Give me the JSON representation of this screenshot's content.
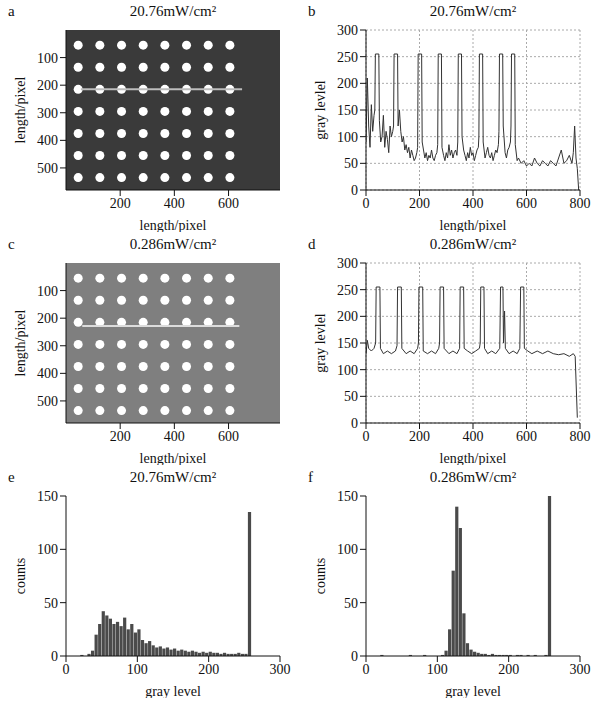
{
  "chart_data": [
    {
      "type": "scatter",
      "panel_label": "a",
      "title": "20.76mW/cm²",
      "x_label": "length/pixel",
      "y_label": "length/pixel",
      "xlim": [
        0,
        790
      ],
      "ylim": [
        0,
        580
      ],
      "xticks": [
        200,
        400,
        600
      ],
      "yticks": [
        100,
        200,
        300,
        400,
        500
      ],
      "grid": false,
      "series": [
        {
          "type": "scatter",
          "marker": "circle",
          "color": "#ffffff",
          "x": [
            45,
            125,
            205,
            285,
            365,
            445,
            525,
            605,
            45,
            125,
            205,
            285,
            365,
            445,
            525,
            605,
            45,
            125,
            205,
            285,
            365,
            445,
            525,
            605,
            45,
            125,
            205,
            285,
            365,
            445,
            525,
            605,
            45,
            125,
            205,
            285,
            365,
            445,
            525,
            605,
            45,
            125,
            205,
            285,
            365,
            445,
            525,
            605,
            45,
            125,
            205,
            285,
            365,
            445,
            525,
            605
          ],
          "y": [
            55,
            55,
            55,
            55,
            55,
            55,
            55,
            55,
            135,
            135,
            135,
            135,
            135,
            135,
            135,
            135,
            215,
            215,
            215,
            215,
            215,
            215,
            215,
            215,
            295,
            295,
            295,
            295,
            295,
            295,
            295,
            295,
            375,
            375,
            375,
            375,
            375,
            375,
            375,
            375,
            455,
            455,
            455,
            455,
            455,
            455,
            455,
            455,
            535,
            535,
            535,
            535,
            535,
            535,
            535,
            535
          ]
        },
        {
          "type": "line",
          "color": "#bdbdbd",
          "x": [
            55,
            650
          ],
          "y": [
            215,
            215
          ]
        }
      ]
    },
    {
      "type": "line",
      "panel_label": "b",
      "title": "20.76mW/cm²",
      "x_label": "length/pixel",
      "y_label": "gray levlel",
      "xlim": [
        0,
        800
      ],
      "ylim": [
        0,
        300
      ],
      "xticks": [
        0,
        200,
        400,
        600,
        800
      ],
      "yticks": [
        0,
        50,
        100,
        150,
        200,
        250,
        300
      ],
      "grid": true,
      "color": "#333333",
      "x": [
        0,
        5,
        10,
        15,
        20,
        25,
        30,
        33,
        35,
        48,
        50,
        55,
        60,
        65,
        70,
        75,
        80,
        85,
        90,
        95,
        100,
        103,
        105,
        118,
        120,
        125,
        130,
        135,
        140,
        145,
        150,
        155,
        160,
        165,
        170,
        175,
        180,
        185,
        190,
        193,
        195,
        208,
        210,
        215,
        220,
        225,
        230,
        235,
        240,
        245,
        250,
        255,
        260,
        265,
        268,
        270,
        282,
        284,
        290,
        295,
        300,
        305,
        310,
        315,
        320,
        325,
        330,
        335,
        340,
        343,
        345,
        357,
        359,
        365,
        370,
        375,
        380,
        385,
        390,
        395,
        400,
        405,
        410,
        415,
        420,
        422,
        424,
        436,
        438,
        445,
        450,
        455,
        460,
        465,
        470,
        475,
        480,
        485,
        490,
        495,
        497,
        499,
        511,
        513,
        520,
        525,
        530,
        535,
        540,
        542,
        544,
        556,
        558,
        565,
        570,
        580,
        590,
        600,
        610,
        620,
        630,
        640,
        650,
        660,
        670,
        680,
        690,
        700,
        710,
        720,
        730,
        740,
        750,
        760,
        770,
        775,
        780,
        785,
        790,
        795
      ],
      "values": [
        90,
        210,
        120,
        80,
        160,
        110,
        140,
        150,
        255,
        255,
        130,
        90,
        100,
        140,
        80,
        110,
        95,
        70,
        120,
        100,
        110,
        120,
        255,
        255,
        120,
        150,
        110,
        90,
        100,
        75,
        85,
        70,
        80,
        60,
        75,
        65,
        55,
        60,
        70,
        80,
        255,
        255,
        90,
        75,
        60,
        70,
        55,
        65,
        60,
        75,
        60,
        55,
        65,
        70,
        85,
        255,
        255,
        80,
        65,
        55,
        70,
        60,
        85,
        65,
        75,
        60,
        70,
        75,
        65,
        90,
        255,
        255,
        100,
        75,
        65,
        55,
        70,
        60,
        80,
        65,
        70,
        55,
        65,
        75,
        80,
        100,
        255,
        255,
        90,
        60,
        70,
        80,
        65,
        60,
        70,
        55,
        65,
        75,
        70,
        85,
        110,
        255,
        255,
        120,
        70,
        60,
        75,
        80,
        90,
        120,
        255,
        255,
        85,
        55,
        60,
        50,
        55,
        45,
        50,
        45,
        60,
        50,
        45,
        55,
        50,
        45,
        55,
        50,
        45,
        60,
        75,
        50,
        55,
        65,
        50,
        70,
        120,
        60,
        40,
        0
      ]
    },
    {
      "type": "scatter",
      "panel_label": "c",
      "title": "0.286mW/cm²",
      "x_label": "length/pixel",
      "y_label": "length/pixel",
      "xlim": [
        0,
        790
      ],
      "ylim": [
        0,
        580
      ],
      "xticks": [
        200,
        400,
        600
      ],
      "yticks": [
        100,
        200,
        300,
        400,
        500
      ],
      "grid": false,
      "series": [
        {
          "type": "scatter",
          "marker": "circle",
          "color": "#ffffff",
          "x": [
            45,
            125,
            205,
            285,
            365,
            445,
            525,
            605,
            45,
            125,
            205,
            285,
            365,
            445,
            525,
            605,
            45,
            125,
            205,
            285,
            365,
            445,
            525,
            605,
            45,
            125,
            205,
            285,
            365,
            445,
            525,
            605,
            45,
            125,
            205,
            285,
            365,
            445,
            525,
            605,
            45,
            125,
            205,
            285,
            365,
            445,
            525,
            605,
            45,
            125,
            205,
            285,
            365,
            445,
            525,
            605
          ],
          "y": [
            55,
            55,
            55,
            55,
            55,
            55,
            55,
            55,
            135,
            135,
            135,
            135,
            135,
            135,
            135,
            135,
            215,
            215,
            215,
            215,
            215,
            215,
            215,
            215,
            295,
            295,
            295,
            295,
            295,
            295,
            295,
            295,
            375,
            375,
            375,
            375,
            375,
            375,
            375,
            375,
            455,
            455,
            455,
            455,
            455,
            455,
            455,
            455,
            535,
            535,
            535,
            535,
            535,
            535,
            535,
            535
          ]
        },
        {
          "type": "line",
          "color": "#dcdcdc",
          "x": [
            60,
            640
          ],
          "y": [
            228,
            228
          ]
        }
      ]
    },
    {
      "type": "line",
      "panel_label": "d",
      "title": "0.286mW/cm²",
      "x_label": "length/pixel",
      "y_label": "gray levlel",
      "xlim": [
        0,
        800
      ],
      "ylim": [
        0,
        300
      ],
      "xticks": [
        0,
        200,
        400,
        600,
        800
      ],
      "yticks": [
        0,
        50,
        100,
        150,
        200,
        250,
        300
      ],
      "grid": true,
      "color": "#333333",
      "x": [
        0,
        5,
        10,
        20,
        30,
        36,
        38,
        52,
        54,
        65,
        80,
        95,
        110,
        116,
        118,
        132,
        134,
        150,
        165,
        180,
        193,
        196,
        198,
        212,
        214,
        230,
        245,
        260,
        272,
        275,
        277,
        290,
        292,
        310,
        325,
        340,
        350,
        352,
        365,
        367,
        380,
        395,
        410,
        424,
        427,
        429,
        441,
        443,
        455,
        470,
        485,
        500,
        503,
        512,
        514,
        518,
        521,
        535,
        550,
        565,
        575,
        578,
        590,
        592,
        605,
        620,
        640,
        660,
        680,
        700,
        720,
        740,
        760,
        775,
        782,
        790
      ],
      "values": [
        130,
        155,
        140,
        135,
        140,
        150,
        255,
        255,
        140,
        130,
        135,
        130,
        135,
        145,
        255,
        255,
        140,
        130,
        135,
        130,
        140,
        150,
        255,
        255,
        135,
        130,
        135,
        130,
        140,
        150,
        255,
        255,
        140,
        130,
        135,
        130,
        140,
        255,
        255,
        140,
        135,
        130,
        135,
        140,
        150,
        255,
        255,
        140,
        130,
        135,
        130,
        140,
        255,
        255,
        150,
        210,
        140,
        130,
        135,
        130,
        140,
        255,
        255,
        140,
        135,
        130,
        135,
        130,
        135,
        130,
        128,
        130,
        125,
        130,
        125,
        10
      ]
    },
    {
      "type": "histogram",
      "panel_label": "e",
      "title": "20.76mW/cm²",
      "x_label": "gray level",
      "y_label": "counts",
      "xlim": [
        0,
        300
      ],
      "ylim": [
        0,
        150
      ],
      "xticks": [
        0,
        100,
        200,
        300
      ],
      "yticks": [
        0,
        50,
        100,
        150
      ],
      "grid": false,
      "color": "#4a4a4a",
      "bins": [
        0,
        5,
        10,
        15,
        20,
        25,
        30,
        35,
        40,
        45,
        50,
        55,
        60,
        65,
        70,
        75,
        80,
        85,
        90,
        95,
        100,
        105,
        110,
        115,
        120,
        125,
        130,
        135,
        140,
        145,
        150,
        155,
        160,
        165,
        170,
        175,
        180,
        185,
        190,
        195,
        200,
        205,
        210,
        215,
        220,
        225,
        230,
        235,
        240,
        245,
        250,
        255,
        260
      ],
      "counts": [
        0,
        0,
        0,
        0,
        1,
        0,
        2,
        5,
        20,
        30,
        42,
        38,
        35,
        30,
        32,
        28,
        36,
        25,
        30,
        22,
        25,
        15,
        12,
        14,
        10,
        8,
        9,
        7,
        8,
        6,
        7,
        5,
        6,
        5,
        4,
        5,
        4,
        3,
        4,
        3,
        4,
        3,
        3,
        2,
        3,
        2,
        2,
        2,
        3,
        2,
        2,
        135
      ]
    },
    {
      "type": "histogram",
      "panel_label": "f",
      "title": "0.286mW/cm²",
      "x_label": "gray level",
      "y_label": "counts",
      "xlim": [
        0,
        300
      ],
      "ylim": [
        0,
        150
      ],
      "xticks": [
        0,
        100,
        200,
        300
      ],
      "yticks": [
        0,
        50,
        100,
        150
      ],
      "grid": false,
      "color": "#4a4a4a",
      "bins": [
        0,
        5,
        10,
        15,
        20,
        25,
        30,
        35,
        40,
        45,
        50,
        55,
        60,
        65,
        70,
        75,
        80,
        85,
        90,
        95,
        100,
        105,
        110,
        115,
        120,
        125,
        130,
        135,
        140,
        145,
        150,
        155,
        160,
        165,
        170,
        175,
        180,
        185,
        190,
        195,
        200,
        205,
        210,
        215,
        220,
        225,
        230,
        235,
        240,
        245,
        250,
        255,
        260
      ],
      "counts": [
        0,
        0,
        0,
        0,
        1,
        0,
        0,
        0,
        0,
        0,
        0,
        0,
        1,
        0,
        0,
        0,
        1,
        0,
        0,
        0,
        0,
        1,
        5,
        25,
        80,
        140,
        120,
        40,
        12,
        6,
        4,
        3,
        2,
        2,
        1,
        2,
        1,
        1,
        1,
        1,
        1,
        0,
        1,
        1,
        0,
        1,
        0,
        1,
        0,
        0,
        1,
        150
      ]
    }
  ]
}
